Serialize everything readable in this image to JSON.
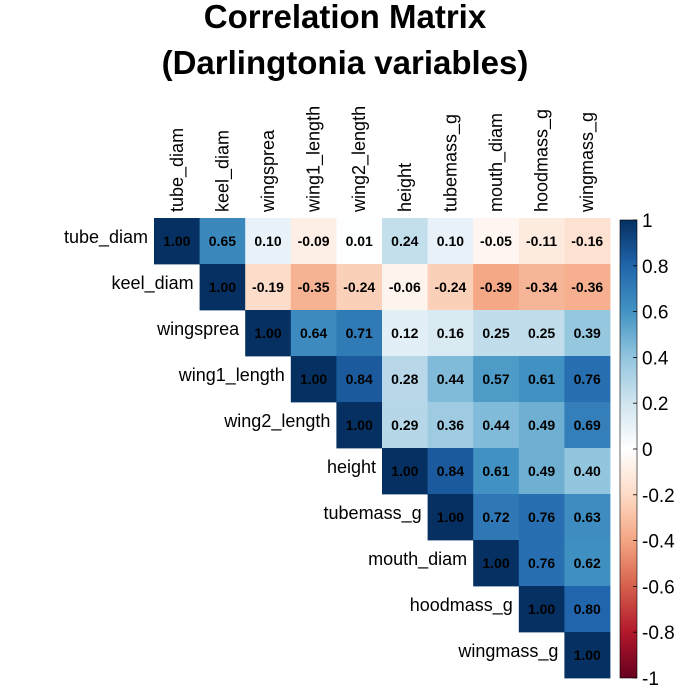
{
  "chart_data": {
    "type": "heatmap",
    "title": "Correlation Matrix\n(Darlingtonia variables)",
    "title_lines": [
      "Correlation Matrix",
      "(Darlingtonia variables)"
    ],
    "variables": [
      "tube_diam",
      "keel_diam",
      "wingsprea",
      "wing1_length",
      "wing2_length",
      "height",
      "tubemass_g",
      "mouth_diam",
      "hoodmass_g",
      "wingmass_g"
    ],
    "matrix": [
      [
        1.0,
        0.65,
        0.1,
        -0.09,
        0.01,
        0.24,
        0.1,
        -0.05,
        -0.11,
        -0.16
      ],
      [
        null,
        1.0,
        -0.19,
        -0.35,
        -0.24,
        -0.06,
        -0.24,
        -0.39,
        -0.34,
        -0.36
      ],
      [
        null,
        null,
        1.0,
        0.64,
        0.71,
        0.12,
        0.16,
        0.25,
        0.25,
        0.39
      ],
      [
        null,
        null,
        null,
        1.0,
        0.84,
        0.28,
        0.44,
        0.57,
        0.61,
        0.76
      ],
      [
        null,
        null,
        null,
        null,
        1.0,
        0.29,
        0.36,
        0.44,
        0.49,
        0.69
      ],
      [
        null,
        null,
        null,
        null,
        null,
        1.0,
        0.84,
        0.61,
        0.49,
        0.4
      ],
      [
        null,
        null,
        null,
        null,
        null,
        null,
        1.0,
        0.72,
        0.76,
        0.63
      ],
      [
        null,
        null,
        null,
        null,
        null,
        null,
        null,
        1.0,
        0.76,
        0.62
      ],
      [
        null,
        null,
        null,
        null,
        null,
        null,
        null,
        null,
        1.0,
        0.8
      ],
      [
        null,
        null,
        null,
        null,
        null,
        null,
        null,
        null,
        null,
        1.0
      ]
    ],
    "triangle": "upper",
    "color_scale": {
      "range": [
        -1,
        1
      ],
      "ticks": [
        1,
        0.8,
        0.6,
        0.4,
        0.2,
        0,
        -0.2,
        -0.4,
        -0.6,
        -0.8,
        -1
      ],
      "tick_labels": [
        "1",
        "0.8",
        "0.6",
        "0.4",
        "0.2",
        "0",
        "-0.2",
        "-0.4",
        "-0.6",
        "-0.8",
        "-1"
      ],
      "palette": "RdBu",
      "stops": [
        {
          "v": -1.0,
          "color": "#67001f"
        },
        {
          "v": -0.8,
          "color": "#b2182b"
        },
        {
          "v": -0.6,
          "color": "#d6604d"
        },
        {
          "v": -0.4,
          "color": "#f4a582"
        },
        {
          "v": -0.2,
          "color": "#fddbc7"
        },
        {
          "v": 0.0,
          "color": "#ffffff"
        },
        {
          "v": 0.2,
          "color": "#d1e5f0"
        },
        {
          "v": 0.4,
          "color": "#92c5de"
        },
        {
          "v": 0.6,
          "color": "#4393c3"
        },
        {
          "v": 0.8,
          "color": "#2166ac"
        },
        {
          "v": 1.0,
          "color": "#053061"
        }
      ]
    },
    "legend_placement": "right",
    "grid": false
  }
}
